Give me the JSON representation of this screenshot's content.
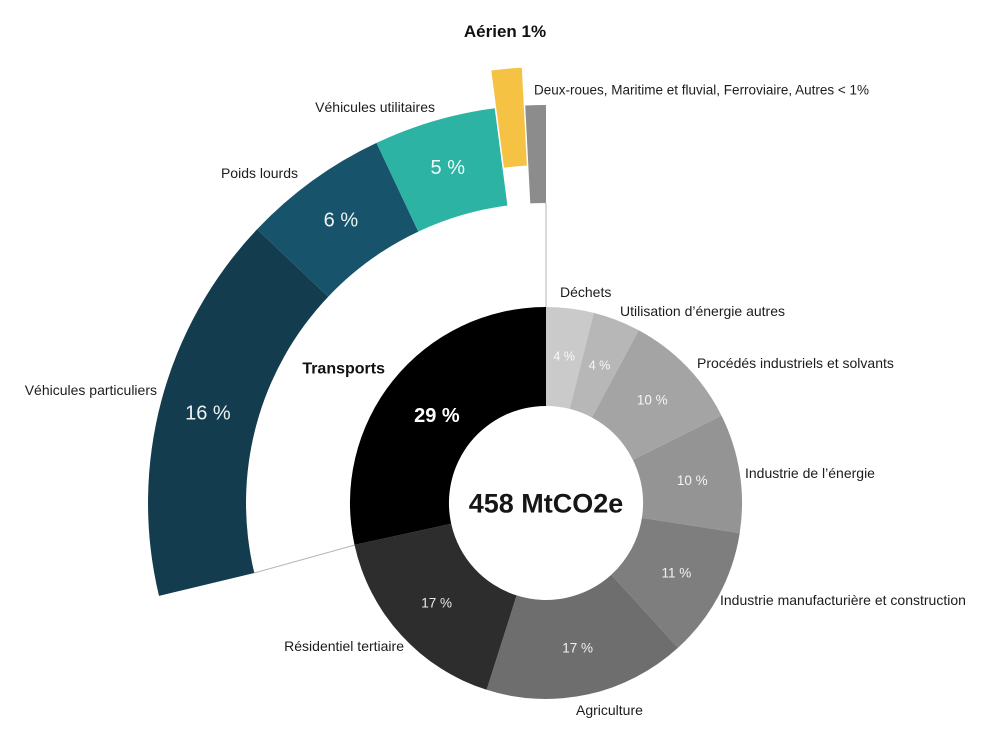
{
  "chart_data": {
    "type": "pie",
    "subtype": "donut-with-breakdown-arc",
    "center_label": "458 MtCO2e",
    "background": "#ffffff",
    "leader_line_color": "#b5b5b5",
    "inner_segments": [
      {
        "id": "dechets",
        "label": "Déchets",
        "value": 4,
        "pct_label": "4 %",
        "color": "#cacaca"
      },
      {
        "id": "utilisation",
        "label": "Utilisation d’énergie autres",
        "value": 4,
        "pct_label": "4 %",
        "color": "#b7b7b7"
      },
      {
        "id": "procedes",
        "label": "Procédés industriels et solvants",
        "value": 10,
        "pct_label": "10 %",
        "color": "#a4a4a4"
      },
      {
        "id": "energie",
        "label": "Industrie de l’énergie",
        "value": 10,
        "pct_label": "10 %",
        "color": "#949494"
      },
      {
        "id": "manufacture",
        "label": "Industrie manufacturière et construction",
        "value": 11,
        "pct_label": "11 %",
        "color": "#7e7e7e"
      },
      {
        "id": "agriculture",
        "label": "Agriculture",
        "value": 17,
        "pct_label": "17 %",
        "color": "#6e6e6e"
      },
      {
        "id": "residentiel",
        "label": "Résidentiel tertiaire",
        "value": 17,
        "pct_label": "17 %",
        "color": "#2d2d2d"
      },
      {
        "id": "transports",
        "label": "Transports",
        "value": 29,
        "pct_label": "29 %",
        "color": "#000000"
      }
    ],
    "outer_segments": [
      {
        "id": "vehicules-particuliers",
        "label": "Véhicules particuliers",
        "value": 16,
        "pct_label": "16 %",
        "color": "#133c4f"
      },
      {
        "id": "poids-lourds",
        "label": "Poids lourds",
        "value": 6,
        "pct_label": "6 %",
        "color": "#17536a"
      },
      {
        "id": "vehicules-utilitaires",
        "label": "Véhicules utilitaires",
        "value": 5,
        "pct_label": "5 %",
        "color": "#2cb3a4"
      },
      {
        "id": "aerien",
        "label": "Aérien 1%",
        "value": 1,
        "pct_label": "",
        "color": "#f5c244",
        "exploded": true
      },
      {
        "id": "autres",
        "label": "Deux-roues, Maritime et fluvial, Ferroviaire, Autres < 1%",
        "value": 1,
        "pct_label": "",
        "color": "#8c8c8c"
      }
    ]
  }
}
